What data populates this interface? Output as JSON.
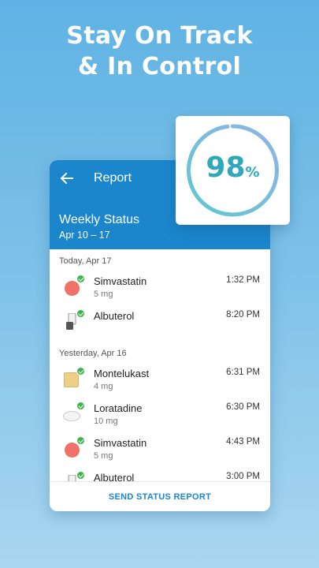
{
  "promo": {
    "line1": "Stay On Track",
    "line2": "& In Control"
  },
  "badge": {
    "value": "98",
    "unit": "%",
    "progress": 0.98,
    "ring_colors": [
      "#5ec8d0",
      "#8fb4e6"
    ]
  },
  "header": {
    "back_icon": "arrow-left-icon",
    "title": "Report",
    "week_title": "Weekly Status",
    "week_range": "Apr 10 – 17",
    "color": "#1b86cc"
  },
  "sections": [
    {
      "label": "Today, Apr 17",
      "items": [
        {
          "name": "Simvastatin",
          "dose": "5 mg",
          "time": "1:32 PM",
          "icon": "red-round-pill"
        },
        {
          "name": "Albuterol",
          "dose": "",
          "time": "8:20 PM",
          "icon": "inhaler"
        }
      ]
    },
    {
      "label": "Yesterday, Apr 16",
      "items": [
        {
          "name": "Montelukast",
          "dose": "4 mg",
          "time": "6:31 PM",
          "icon": "yellow-square-pill"
        },
        {
          "name": "Loratadine",
          "dose": "10 mg",
          "time": "6:30 PM",
          "icon": "white-oval-pill"
        },
        {
          "name": "Simvastatin",
          "dose": "5 mg",
          "time": "4:43 PM",
          "icon": "red-round-pill"
        },
        {
          "name": "Albuterol",
          "dose": "",
          "time": "3:00 PM",
          "icon": "inhaler"
        }
      ]
    }
  ],
  "footer": {
    "send_label": "SEND STATUS REPORT"
  }
}
